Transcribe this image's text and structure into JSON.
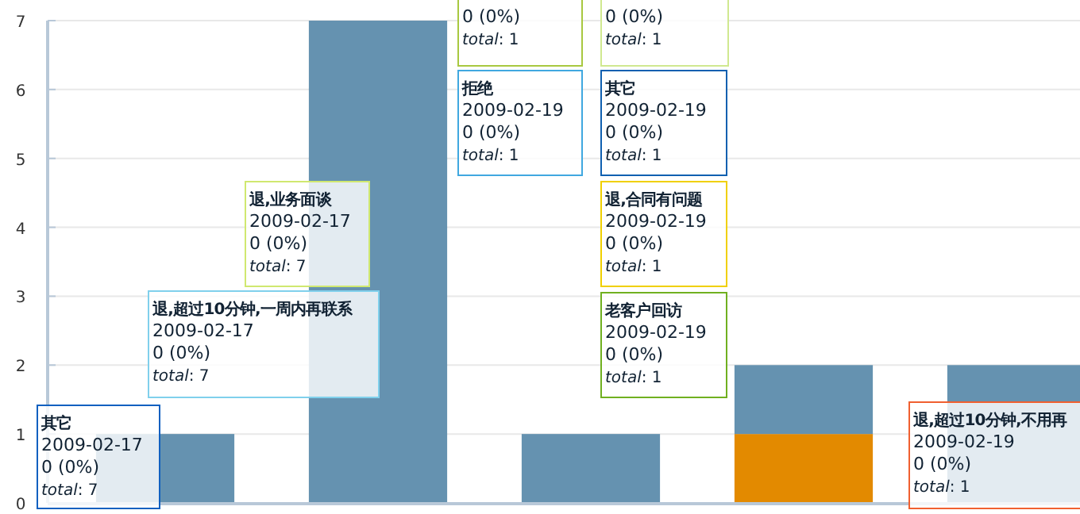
{
  "chart_data": {
    "type": "bar",
    "stacked": true,
    "categories": [
      null,
      null,
      null,
      null,
      null
    ],
    "series": [
      {
        "color": "#e38a00",
        "values": [
          null,
          null,
          null,
          1,
          null
        ]
      },
      {
        "color": "#6592b0",
        "values": [
          1,
          7,
          1,
          1,
          2
        ]
      }
    ],
    "ylim": [
      0,
      7
    ],
    "yticks": [
      0,
      1,
      2,
      3,
      4,
      5,
      6,
      7
    ],
    "grid": "y",
    "annotations": [
      "其它\n2009-02-17\n0 (0%)\ntotal: 7",
      "退,超过10分钟,一周内再联系\n2009-02-17\n0 (0%)\ntotal: 7",
      "退,业务面谈\n2009-02-17\n0 (0%)\ntotal: 7",
      "0 (0%)\ntotal: 1",
      "0 (0%)\ntotal: 1",
      "拒绝\n2009-02-19\n0 (0%)\ntotal: 1",
      "其它\n2009-02-19\n0 (0%)\ntotal: 1",
      "退,合同有问题\n2009-02-19\n0 (0%)\ntotal: 1",
      "老客户回访\n2009-02-19\n0 (0%)\ntotal: 1",
      "退,超过10分钟,不用再\n2009-02-19\n0 (0%)\ntotal: 1"
    ]
  }
}
